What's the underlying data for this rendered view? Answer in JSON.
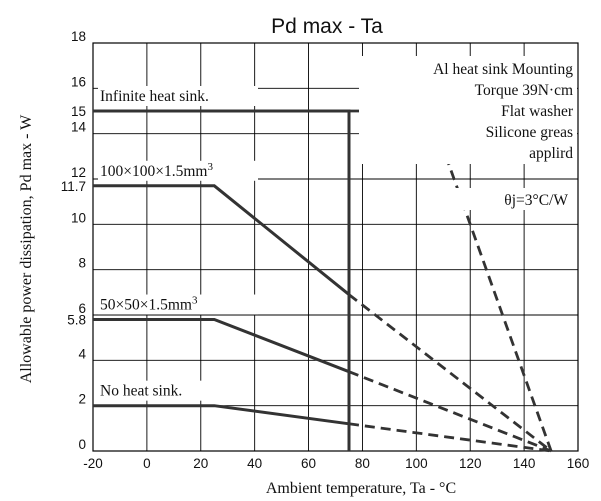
{
  "chart_data": {
    "type": "line",
    "title": "Pd max - Ta",
    "xlabel": "Ambient temperature, Ta - °C",
    "ylabel": "Allowable power dissipation, Pd max - W",
    "xlim": [
      -20,
      160
    ],
    "ylim": [
      0,
      18
    ],
    "x_ticks": [
      -20,
      0,
      20,
      40,
      60,
      80,
      100,
      120,
      140,
      160
    ],
    "y_ticks": [
      0,
      2,
      4,
      6,
      8,
      10,
      12,
      14,
      16,
      18
    ],
    "y_extra_ticks": [
      {
        "value": 5.8,
        "label": "5.8"
      },
      {
        "value": 11.7,
        "label": "11.7"
      },
      {
        "value": 15,
        "label": "15"
      }
    ],
    "grid": true,
    "series": [
      {
        "name": "Infinite heat sink.",
        "label_sup": "",
        "solid": [
          [
            -20,
            15
          ],
          [
            75,
            15
          ],
          [
            75,
            0
          ]
        ],
        "dashed": [
          [
            75,
            15
          ],
          [
            105,
            15
          ],
          [
            150,
            0
          ]
        ]
      },
      {
        "name": "100×100×1.5mm",
        "label_sup": "3",
        "solid": [
          [
            -20,
            11.7
          ],
          [
            25,
            11.7
          ],
          [
            75,
            6.9
          ]
        ],
        "dashed": [
          [
            75,
            6.9
          ],
          [
            150,
            0
          ]
        ]
      },
      {
        "name": "50×50×1.5mm",
        "label_sup": "3",
        "solid": [
          [
            -20,
            5.8
          ],
          [
            25,
            5.8
          ],
          [
            75,
            3.5
          ]
        ],
        "dashed": [
          [
            75,
            3.5
          ],
          [
            150,
            0
          ]
        ]
      },
      {
        "name": "No heat sink.",
        "label_sup": "",
        "solid": [
          [
            -20,
            2
          ],
          [
            25,
            2
          ],
          [
            75,
            1.2
          ]
        ],
        "dashed": [
          [
            75,
            1.2
          ],
          [
            150,
            0
          ]
        ]
      }
    ],
    "annotations": {
      "mounting_lines": [
        "Al heat sink Mounting",
        "Torque 39N·cm",
        "Flat washer",
        "Silicone greas",
        "applird"
      ],
      "theta": "θj=3°C/W"
    }
  }
}
